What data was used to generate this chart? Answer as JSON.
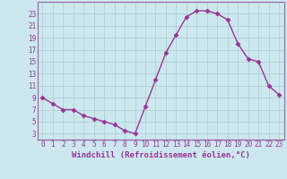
{
  "x": [
    0,
    1,
    2,
    3,
    4,
    5,
    6,
    7,
    8,
    9,
    10,
    11,
    12,
    13,
    14,
    15,
    16,
    17,
    18,
    19,
    20,
    21,
    22,
    23
  ],
  "y": [
    9,
    8,
    7,
    7,
    6,
    5.5,
    5,
    4.5,
    3.5,
    3,
    7.5,
    12,
    16.5,
    19.5,
    22.5,
    23.5,
    23.5,
    23,
    22,
    18,
    15.5,
    15,
    11,
    9.5
  ],
  "line_color": "#993399",
  "marker": "D",
  "marker_size": 2.5,
  "background_color": "#cce8ee",
  "grid_color": "#aacccc",
  "xlabel": "Windchill (Refroidissement éolien,°C)",
  "xlabel_fontsize": 6.5,
  "tick_fontsize": 5.5,
  "ylim": [
    2,
    25
  ],
  "yticks": [
    3,
    5,
    7,
    9,
    11,
    13,
    15,
    17,
    19,
    21,
    23
  ],
  "xticks": [
    0,
    1,
    2,
    3,
    4,
    5,
    6,
    7,
    8,
    9,
    10,
    11,
    12,
    13,
    14,
    15,
    16,
    17,
    18,
    19,
    20,
    21,
    22,
    23
  ],
  "spine_color": "#9966aa",
  "linewidth": 1.0
}
